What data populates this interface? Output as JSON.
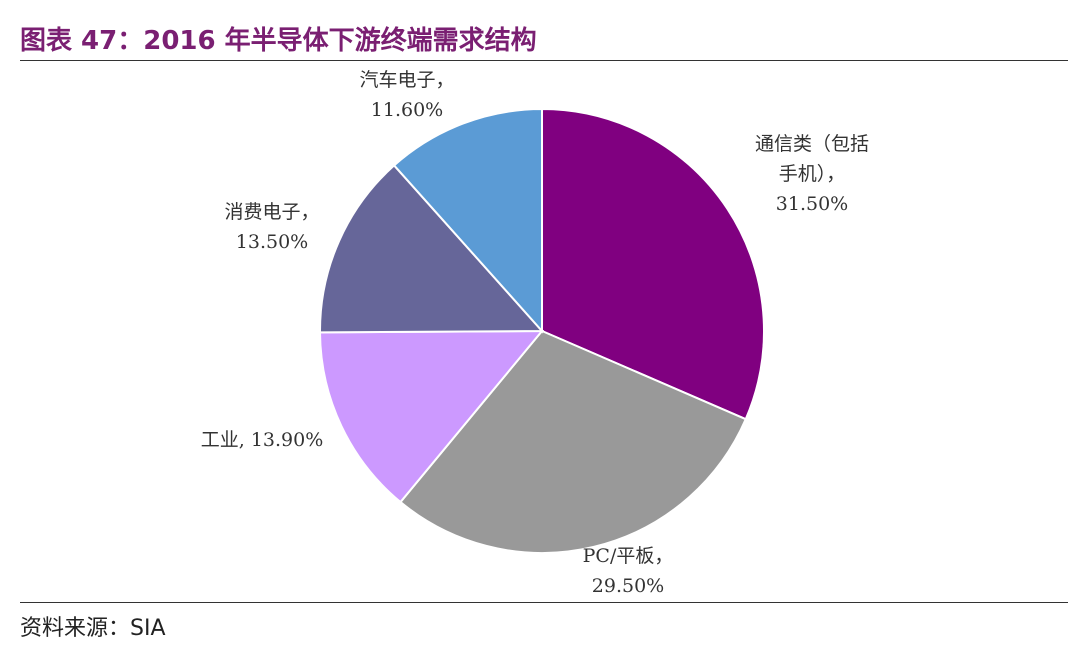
{
  "title": "图表 47：2016 年半导体下游终端需求结构",
  "source": {
    "label": "资料来源：",
    "value": "SIA"
  },
  "colors": {
    "title": "#7a1f72",
    "rule": "#333333"
  },
  "chart_data": {
    "type": "pie",
    "start_angle_deg": 0,
    "direction": "clockwise",
    "slices": [
      {
        "name": "通信类（包括手机）",
        "value": 31.5,
        "color": "#800080",
        "label_lines": [
          "通信类（包括",
          "手机），",
          "31.50%"
        ]
      },
      {
        "name": "PC/平板",
        "value": 29.5,
        "color": "#999999",
        "label_lines": [
          "PC/平板，",
          "29.50%"
        ]
      },
      {
        "name": "工业",
        "value": 13.9,
        "color": "#cc99ff",
        "label_lines": [
          "工业, 13.90%"
        ]
      },
      {
        "name": "消费电子",
        "value": 13.5,
        "color": "#666699",
        "label_lines": [
          "消费电子，",
          "13.50%"
        ]
      },
      {
        "name": "汽车电子",
        "value": 11.6,
        "color": "#5b9bd5",
        "label_lines": [
          "汽车电子，",
          "11.60%"
        ]
      }
    ]
  }
}
